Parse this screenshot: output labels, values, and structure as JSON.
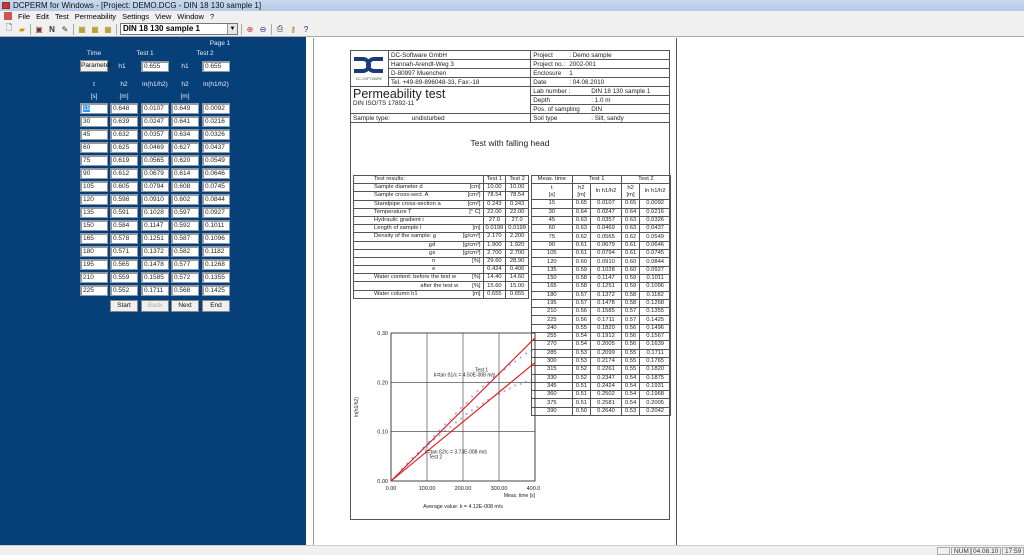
{
  "window": {
    "title": "DCPERM for Windows - [Project: DEMO.DCG - DIN 18 130 sample 1]"
  },
  "menu": [
    "File",
    "Edit",
    "Test",
    "Permeability",
    "Settings",
    "View",
    "Window",
    "?"
  ],
  "toolbar": {
    "icons": [
      "new-icon",
      "open-icon",
      "save-icon",
      "n-icon",
      "pencil-icon",
      "grid1-icon",
      "grid2-icon",
      "grid3-icon"
    ],
    "sample_select": "DIN 18 130 sample 1",
    "right_icons": [
      "zoom-in-icon",
      "zoom-out-icon",
      "print-icon",
      "key-icon",
      "help-icon"
    ]
  },
  "entry": {
    "page": "Page 1",
    "time_label": "Time",
    "test1_label": "Test 1",
    "test2_label": "Test 2",
    "parameter_button": "Parameter",
    "h1_label": "h1",
    "h1_test1": "0.655",
    "h1_test2": "0.655",
    "col_headers": [
      "t",
      "h2",
      "ln(h1/h2)",
      "h2",
      "ln(h1/h2)"
    ],
    "col_units": [
      "[s]",
      "[m]",
      "",
      "[m]",
      ""
    ],
    "rows": [
      [
        "15",
        "0.648",
        "0.0107",
        "0.649",
        "0.0092"
      ],
      [
        "30",
        "0.639",
        "0.0247",
        "0.641",
        "0.0216"
      ],
      [
        "45",
        "0.632",
        "0.0357",
        "0.634",
        "0.0326"
      ],
      [
        "60",
        "0.625",
        "0.0469",
        "0.627",
        "0.0437"
      ],
      [
        "75",
        "0.619",
        "0.0565",
        "0.620",
        "0.0549"
      ],
      [
        "90",
        "0.612",
        "0.0679",
        "0.614",
        "0.0646"
      ],
      [
        "105",
        "0.605",
        "0.0794",
        "0.608",
        "0.0745"
      ],
      [
        "120",
        "0.598",
        "0.0910",
        "0.602",
        "0.0844"
      ],
      [
        "135",
        "0.591",
        "0.1028",
        "0.597",
        "0.0927"
      ],
      [
        "150",
        "0.584",
        "0.1147",
        "0.592",
        "0.1011"
      ],
      [
        "165",
        "0.578",
        "0.1251",
        "0.587",
        "0.1096"
      ],
      [
        "180",
        "0.571",
        "0.1372",
        "0.582",
        "0.1182"
      ],
      [
        "195",
        "0.565",
        "0.1478",
        "0.577",
        "0.1268"
      ],
      [
        "210",
        "0.559",
        "0.1585",
        "0.572",
        "0.1355"
      ],
      [
        "225",
        "0.552",
        "0.1711",
        "0.568",
        "0.1425"
      ]
    ],
    "buttons": {
      "start": "Start",
      "back": "Back",
      "next": "Next",
      "end": "End"
    }
  },
  "doc": {
    "company": [
      "DC-Software GmbH",
      "Hannah-Arendt-Weg 3",
      "D-80997 Muenchen",
      "Tel. +49-89-896048-33, Fax:-18"
    ],
    "logo_text": "DC-SOFTWARE",
    "title": "Permeability test",
    "standard": "DIN ISO/TS 17892-11",
    "sample_type_label": "Sample type:",
    "sample_type": "undisturbed",
    "info": [
      [
        "Project",
        ":  Demo sample"
      ],
      [
        "Project no.:",
        "2002-001"
      ],
      [
        "Enclosure",
        "1"
      ],
      [
        "Date",
        ":  04.08.2010"
      ],
      [
        "Lab number :",
        "DIN 18 130 sample 1"
      ],
      [
        "Depth",
        ":  1.0 m"
      ],
      [
        "Pos. of sampling",
        "DIN"
      ],
      [
        "Soil type",
        ":  Silt, sandy"
      ]
    ],
    "subtitle": "Test with falling head",
    "results_header": [
      "Test results:",
      "Test 1",
      "Test 2"
    ],
    "results": [
      [
        "Sample diameter d",
        "[cm]",
        "10.00",
        "10.00"
      ],
      [
        "Sample cross-sect. A",
        "[cm²]",
        "78.54",
        "78.54"
      ],
      [
        "Standpipe cross-section a",
        "[cm²]",
        "0.243",
        "0.243"
      ],
      [
        "Temperature T",
        "[° C]",
        "22.00",
        "22.00"
      ],
      [
        "Hydraulic gradient i",
        "",
        "27.0",
        "27.0"
      ],
      [
        "Length of sample l",
        "[m]",
        "0.0199",
        "0.0199"
      ],
      [
        "Density of the sample: ϱ",
        "[g/cm³]",
        "2.170",
        "2.200"
      ],
      [
        "ϱd",
        "[g/cm³]",
        "1.900",
        "1.920"
      ],
      [
        "ϱs",
        "[g/cm³]",
        "2.700",
        "2.700"
      ],
      [
        "n",
        "[%]",
        "29.60",
        "28.90"
      ],
      [
        "e",
        "",
        "0.424",
        "0.406"
      ],
      [
        "Water content:    before the test w",
        "[%]",
        "14.40",
        "14.60"
      ],
      [
        "after the test w",
        "[%]",
        "15.60",
        "15.00"
      ],
      [
        "Water column h1",
        "[m]",
        "0.655",
        "0.655"
      ]
    ],
    "meas_header": [
      "Meas. time",
      "Test 1",
      "Test 2"
    ],
    "meas_sub": [
      "t",
      "h2",
      "ln h1/h2",
      "h2",
      "ln h1/h2"
    ],
    "meas_units": [
      "[s]",
      "[m]",
      "",
      "[m]",
      ""
    ],
    "meas": [
      [
        "15",
        "0.65",
        "0.0107",
        "0.65",
        "0.0092"
      ],
      [
        "30",
        "0.64",
        "0.0247",
        "0.64",
        "0.0216"
      ],
      [
        "45",
        "0.63",
        "0.0357",
        "0.63",
        "0.0326"
      ],
      [
        "60",
        "0.63",
        "0.0469",
        "0.63",
        "0.0437"
      ],
      [
        "75",
        "0.62",
        "0.0565",
        "0.62",
        "0.0549"
      ],
      [
        "90",
        "0.61",
        "0.0679",
        "0.61",
        "0.0646"
      ],
      [
        "105",
        "0.61",
        "0.0794",
        "0.61",
        "0.0745"
      ],
      [
        "120",
        "0.60",
        "0.0910",
        "0.60",
        "0.0844"
      ],
      [
        "135",
        "0.59",
        "0.1028",
        "0.60",
        "0.0927"
      ],
      [
        "150",
        "0.58",
        "0.1147",
        "0.59",
        "0.1011"
      ],
      [
        "165",
        "0.58",
        "0.1251",
        "0.59",
        "0.1096"
      ],
      [
        "180",
        "0.57",
        "0.1372",
        "0.58",
        "0.1182"
      ],
      [
        "195",
        "0.57",
        "0.1478",
        "0.58",
        "0.1268"
      ],
      [
        "210",
        "0.56",
        "0.1585",
        "0.57",
        "0.1355"
      ],
      [
        "225",
        "0.56",
        "0.1711",
        "0.57",
        "0.1425"
      ],
      [
        "240",
        "0.55",
        "0.1820",
        "0.56",
        "0.1496"
      ],
      [
        "255",
        "0.54",
        "0.1912",
        "0.56",
        "0.1567"
      ],
      [
        "270",
        "0.54",
        "0.2005",
        "0.56",
        "0.1639"
      ],
      [
        "285",
        "0.53",
        "0.2099",
        "0.55",
        "0.1711"
      ],
      [
        "300",
        "0.53",
        "0.2174",
        "0.55",
        "0.1765"
      ],
      [
        "315",
        "0.52",
        "0.2261",
        "0.55",
        "0.1820"
      ],
      [
        "330",
        "0.52",
        "0.2347",
        "0.54",
        "0.1875"
      ],
      [
        "345",
        "0.51",
        "0.2424",
        "0.54",
        "0.1931"
      ],
      [
        "360",
        "0.51",
        "0.2502",
        "0.54",
        "0.1968"
      ],
      [
        "375",
        "0.51",
        "0.2581",
        "0.54",
        "0.2005"
      ],
      [
        "390",
        "0.50",
        "0.2640",
        "0.53",
        "0.2042"
      ]
    ]
  },
  "chart_data": {
    "type": "scatter",
    "ylabel": "ln(h1/h2)",
    "xlabel": "Meas. time [s]",
    "xlim": [
      0,
      400
    ],
    "ylim": [
      0,
      0.3
    ],
    "xticks": [
      "0.00",
      "100.00",
      "200.00",
      "300.00",
      "400.00"
    ],
    "yticks": [
      "0.00",
      "0.10",
      "0.20",
      "0.30"
    ],
    "grid": true,
    "x": [
      15,
      30,
      45,
      60,
      75,
      90,
      105,
      120,
      135,
      150,
      165,
      180,
      195,
      210,
      225,
      240,
      255,
      270,
      285,
      300,
      315,
      330,
      345,
      360,
      375,
      390
    ],
    "series": [
      {
        "name": "Test 1",
        "values": [
          0.0107,
          0.0247,
          0.0357,
          0.0469,
          0.0565,
          0.0679,
          0.0794,
          0.091,
          0.1028,
          0.1147,
          0.1251,
          0.1372,
          0.1478,
          0.1585,
          0.1711,
          0.182,
          0.1912,
          0.2005,
          0.2099,
          0.2174,
          0.2261,
          0.2347,
          0.2424,
          0.2502,
          0.2581,
          0.264
        ],
        "fit_end": 0.29,
        "annotation": "k=tan ß1/c = 4.50E-008 m/s"
      },
      {
        "name": "Test 2",
        "values": [
          0.0092,
          0.0216,
          0.0326,
          0.0437,
          0.0549,
          0.0646,
          0.0745,
          0.0844,
          0.0927,
          0.1011,
          0.1096,
          0.1182,
          0.1268,
          0.1355,
          0.1425,
          0.1496,
          0.1567,
          0.1639,
          0.1711,
          0.1765,
          0.182,
          0.1875,
          0.1931,
          0.1968,
          0.2005,
          0.2042
        ],
        "fit_end": 0.24,
        "annotation": "k=tan ß2/c = 3.73E-008 m/s"
      }
    ],
    "footer": "Average value: k  = 4.12E-008 m/s",
    "point_color": "#3b57c8",
    "line_color": "#ee1111"
  },
  "status": {
    "num": "NUM",
    "date": "04.08.10",
    "time": "17:59"
  }
}
